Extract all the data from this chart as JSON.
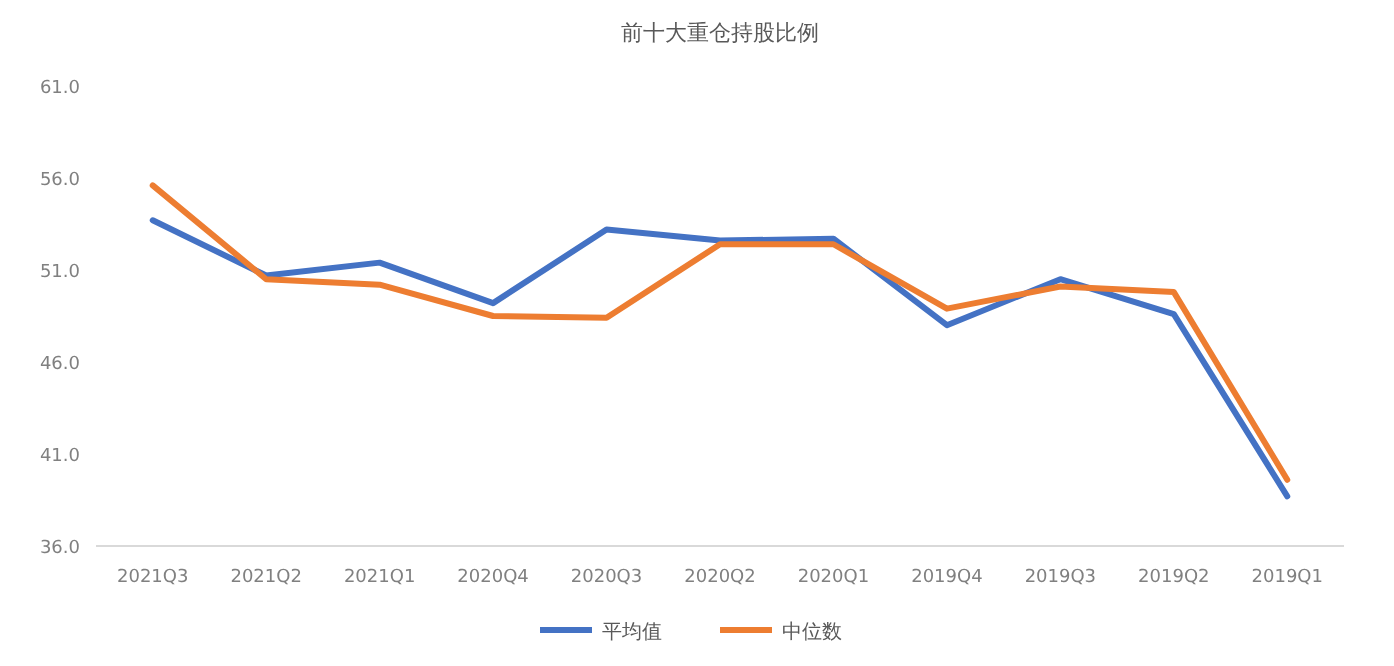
{
  "chart_data": {
    "type": "line",
    "title": "前十大重仓持股比例",
    "categories": [
      "2021Q3",
      "2021Q2",
      "2021Q1",
      "2020Q4",
      "2020Q3",
      "2020Q2",
      "2020Q1",
      "2019Q4",
      "2019Q3",
      "2019Q2",
      "2019Q1"
    ],
    "series": [
      {
        "name": "平均值",
        "color": "#4472c4",
        "values": [
          53.7,
          50.7,
          51.4,
          49.2,
          53.2,
          52.6,
          52.7,
          48.0,
          50.5,
          48.6,
          38.7
        ]
      },
      {
        "name": "中位数",
        "color": "#ed7d31",
        "values": [
          55.6,
          50.5,
          50.2,
          48.5,
          48.4,
          52.4,
          52.4,
          48.9,
          50.1,
          49.8,
          39.6
        ]
      }
    ],
    "ylim": [
      36,
      61
    ],
    "yticks": [
      {
        "value": 36,
        "label": "36.0"
      },
      {
        "value": 41,
        "label": "41.0"
      },
      {
        "value": 46,
        "label": "46.0"
      },
      {
        "value": 51,
        "label": "51.0"
      },
      {
        "value": 56,
        "label": "56.0"
      },
      {
        "value": 61,
        "label": "61.0"
      }
    ],
    "legend": "bottom",
    "marker": "none",
    "line_style": "solid"
  }
}
